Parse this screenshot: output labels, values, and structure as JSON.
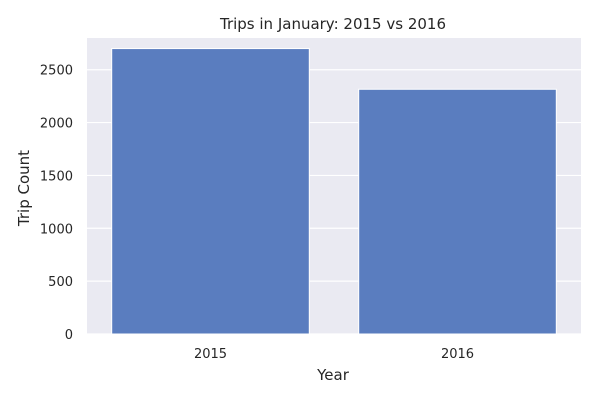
{
  "chart_data": {
    "type": "bar",
    "title": "Trips in January: 2015 vs 2016",
    "xlabel": "Year",
    "ylabel": "Trip Count",
    "categories": [
      "2015",
      "2016"
    ],
    "values": [
      2700,
      2315
    ],
    "ylim": [
      0,
      2800
    ],
    "yticks": [
      0,
      500,
      1000,
      1500,
      2000,
      2500
    ],
    "grid": true,
    "bar_color": "#5a7dbf",
    "background_color": "#eaeaf2",
    "grid_color": "#ffffff"
  }
}
